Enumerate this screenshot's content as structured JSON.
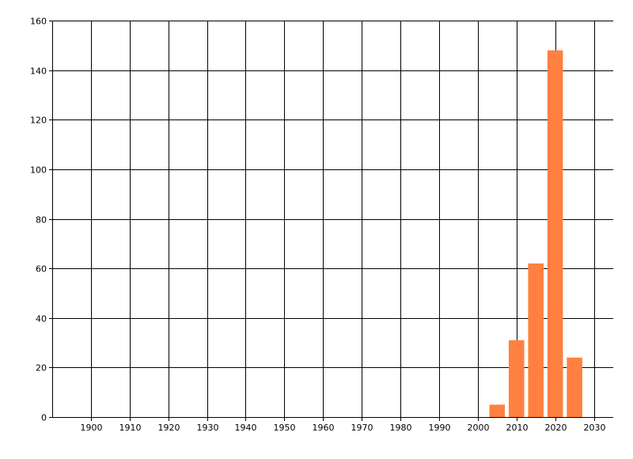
{
  "chart_data": {
    "type": "bar",
    "title": "",
    "xlabel": "",
    "ylabel": "",
    "x": [
      2005,
      2010,
      2015,
      2020,
      2025
    ],
    "values": [
      5,
      31,
      62,
      148,
      24
    ],
    "bar_width_years": 4,
    "xlim": [
      1890,
      2035
    ],
    "ylim": [
      0,
      160
    ],
    "x_ticks": [
      1900,
      1910,
      1920,
      1930,
      1940,
      1950,
      1960,
      1970,
      1980,
      1990,
      2000,
      2010,
      2020,
      2030
    ],
    "y_ticks": [
      0,
      20,
      40,
      60,
      80,
      100,
      120,
      140,
      160
    ],
    "grid": true,
    "bar_color": "#FF8040",
    "grid_color": "#000000"
  }
}
